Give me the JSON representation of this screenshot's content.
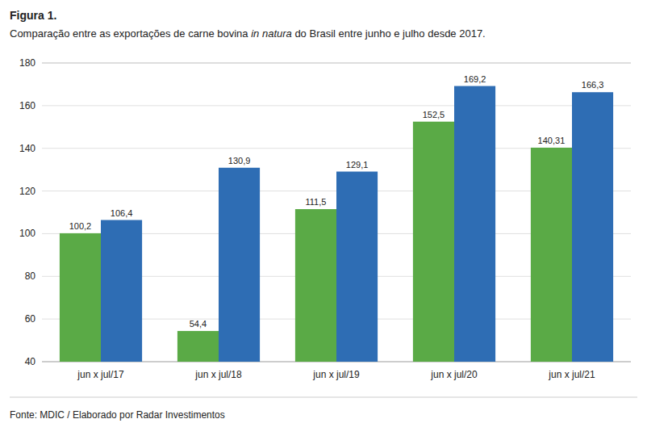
{
  "chart_data": {
    "type": "bar",
    "title": "Figura 1.",
    "subtitle": [
      "Comparação entre as exportações de carne bovina ",
      "in natura",
      " do Brasil entre junho e julho desde 2017."
    ],
    "annotations": [
      "Fonte: MDIC / Elaborado por Radar Investimentos"
    ],
    "categories": [
      "jun x jul/17",
      "jun x jul/18",
      "jun x jul/19",
      "jun x jul/20",
      "jun x jul/21"
    ],
    "series": [
      {
        "color": "#5aaa46",
        "values": [
          100.2,
          54.4,
          111.5,
          152.5,
          140.31
        ],
        "value_labels": [
          "100,2",
          "54,4",
          "111,5",
          "152,5",
          "140,31"
        ]
      },
      {
        "color": "#2e6db4",
        "values": [
          106.4,
          130.9,
          129.1,
          169.2,
          166.3
        ],
        "value_labels": [
          "106,4",
          "130,9",
          "129,1",
          "169,2",
          "166,3"
        ]
      }
    ],
    "ylim": [
      40,
      180
    ],
    "yticks": [
      40,
      60,
      80,
      100,
      120,
      140,
      160,
      180
    ],
    "grid": true,
    "data_labels": true
  }
}
